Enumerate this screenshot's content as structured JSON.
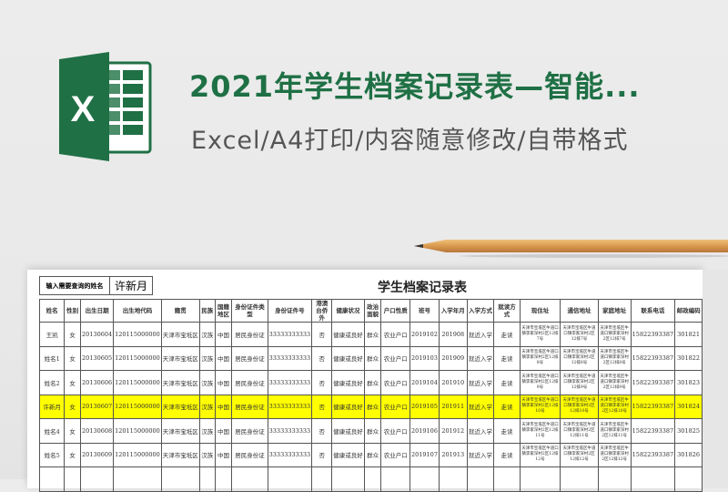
{
  "banner": {
    "title": "2021年学生档案记录表—智能...",
    "subtitle": "Excel/A4打印/内容随意修改/自带格式",
    "logo_text": "X",
    "brand_color": "#1f7045",
    "highlight_color": "#ffff00"
  },
  "sheet": {
    "query_label": "输入需要查询的姓名",
    "query_value": "许新月",
    "title": "学生档案记录表",
    "columns": [
      "姓名",
      "性别",
      "出生日期",
      "出生地代码",
      "籍贯",
      "民族",
      "国籍地区",
      "身份证件类型",
      "身份证件号",
      "港澳台侨外",
      "健康状况",
      "政治面貌",
      "户口性质",
      "班号",
      "入学年月",
      "入学方式",
      "就读方式",
      "现住址",
      "通信地址",
      "家庭地址",
      "联系电话",
      "邮政编码"
    ],
    "rows": [
      [
        "王凯",
        "女",
        "20130604",
        "120115000000",
        "天津市宝坻区",
        "汉族",
        "中国",
        "居民身份证",
        "33333333333",
        "否",
        "健康或良好",
        "群众",
        "农业户口",
        "2019102",
        "201908",
        "就近入学",
        "走读",
        "天津市宝坻区牛道口镇李家深村2区12排7号",
        "天津市宝坻区牛道口镇李家深村2区12排7号",
        "天津市宝坻区牛道口镇李家深村2区12排7号",
        "15822393387",
        "301821"
      ],
      [
        "姓名1",
        "女",
        "20130605",
        "120115000000",
        "天津市宝坻区",
        "汉族",
        "中国",
        "居民身份证",
        "33333333333",
        "否",
        "健康或良好",
        "群众",
        "农业户口",
        "2019103",
        "201909",
        "就近入学",
        "走读",
        "天津市宝坻区牛道口镇李家深村2区12排8号",
        "天津市宝坻区牛道口镇李家深村2区12排8号",
        "天津市宝坻区牛道口镇李家深村2区12排8号",
        "15822393387",
        "301822"
      ],
      [
        "姓名2",
        "女",
        "20130606",
        "120115000000",
        "天津市宝坻区",
        "汉族",
        "中国",
        "居民身份证",
        "33333333333",
        "否",
        "健康或良好",
        "群众",
        "农业户口",
        "2019104",
        "201910",
        "就近入学",
        "走读",
        "天津市宝坻区牛道口镇李家深村2区12排9号",
        "天津市宝坻区牛道口镇李家深村2区12排9号",
        "天津市宝坻区牛道口镇李家深村2区12排9号",
        "15822393387",
        "301823"
      ],
      [
        "许新月",
        "女",
        "20130607",
        "120115000000",
        "天津市宝坻区",
        "汉族",
        "中国",
        "居民身份证",
        "33333333333",
        "否",
        "健康或良好",
        "群众",
        "农业户口",
        "2019105",
        "201911",
        "就近入学",
        "走读",
        "天津市宝坻区牛道口镇李家深村2区12排10号",
        "天津市宝坻区牛道口镇李家深村2区12排10号",
        "天津市宝坻区牛道口镇李家深村2区12排10号",
        "15822393387",
        "301824"
      ],
      [
        "姓名4",
        "女",
        "20130608",
        "120115000000",
        "天津市宝坻区",
        "汉族",
        "中国",
        "居民身份证",
        "33333333333",
        "否",
        "健康或良好",
        "群众",
        "农业户口",
        "2019106",
        "201912",
        "就近入学",
        "走读",
        "天津市宝坻区牛道口镇李家深村2区12排11号",
        "天津市宝坻区牛道口镇李家深村2区12排11号",
        "天津市宝坻区牛道口镇李家深村2区12排11号",
        "15822393387",
        "301825"
      ],
      [
        "姓名5",
        "女",
        "20130609",
        "120115000000",
        "天津市宝坻区",
        "汉族",
        "中国",
        "居民身份证",
        "33333333333",
        "否",
        "健康或良好",
        "群众",
        "农业户口",
        "2019107",
        "201913",
        "就近入学",
        "走读",
        "天津市宝坻区牛道口镇李家深村2区12排12号",
        "天津市宝坻区牛道口镇李家深村2区12排12号",
        "天津市宝坻区牛道口镇李家深村2区12排12号",
        "15822393387",
        "301826"
      ],
      [
        "",
        "",
        "",
        "",
        "",
        "",
        "",
        "",
        "",
        "",
        "",
        "",
        "",
        "",
        "",
        "",
        "",
        "",
        "",
        "",
        "",
        ""
      ]
    ],
    "highlighted_row": 3
  }
}
